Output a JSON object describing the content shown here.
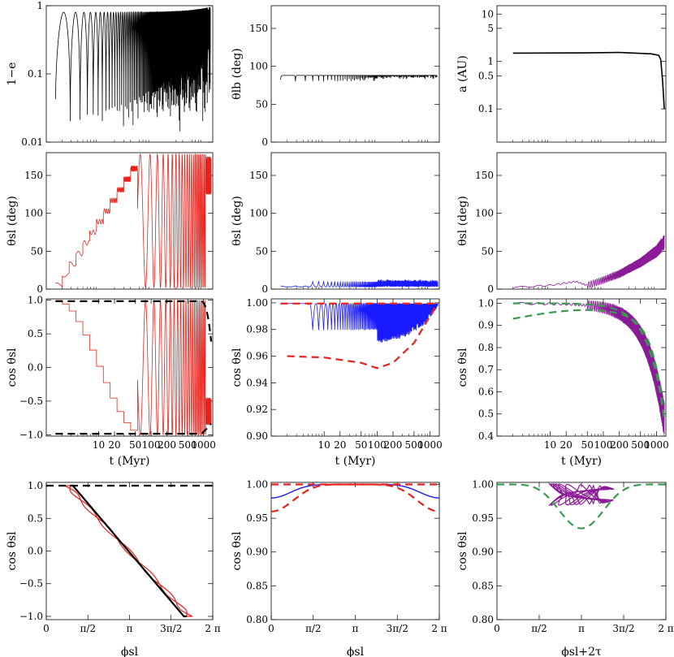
{
  "colors": {
    "black": "#000000",
    "red": "#e8221b",
    "blue": "#1a1aff",
    "purple": "#8b1a96",
    "green": "#3a9a4f"
  },
  "chart_data": [
    {
      "id": "p11",
      "type": "line",
      "ylabel": "1−e",
      "xscale": "log",
      "yscale": "log",
      "xlim": [
        1,
        1500
      ],
      "ylim": [
        0.01,
        1
      ],
      "yticks": [
        {
          "v": 0.01,
          "label": "0.01"
        },
        {
          "v": 0.1,
          "label": "0.1"
        },
        {
          "v": 1,
          "label": "1"
        }
      ],
      "series": [
        {
          "color": "black",
          "desc": "eccentricity oscillations",
          "envelope_min": 0.013,
          "envelope_max": 0.95
        }
      ]
    },
    {
      "id": "p12",
      "type": "line",
      "ylabel": "θlb (deg)",
      "xscale": "log",
      "xlim": [
        1,
        1500
      ],
      "ylim": [
        0,
        180
      ],
      "yticks": [
        {
          "v": 0,
          "label": "0"
        },
        {
          "v": 50,
          "label": "50"
        },
        {
          "v": 100,
          "label": "100"
        },
        {
          "v": 150,
          "label": "150"
        }
      ],
      "series": [
        {
          "color": "black",
          "approx_value": 88,
          "dips_to": 80
        }
      ]
    },
    {
      "id": "p13",
      "type": "line",
      "ylabel": "a (AU)",
      "xscale": "log",
      "yscale": "log",
      "xlim": [
        1,
        1500
      ],
      "ylim": [
        0.02,
        15
      ],
      "yticks": [
        {
          "v": 0.1,
          "label": "0.1"
        },
        {
          "v": 0.5,
          "label": "0.5"
        },
        {
          "v": 1,
          "label": "1"
        },
        {
          "v": 5,
          "label": "5"
        },
        {
          "v": 10,
          "label": "10"
        }
      ],
      "series": [
        {
          "color": "black",
          "x": [
            2,
            50,
            200,
            800,
            1100,
            1200,
            1300,
            1400
          ],
          "y": [
            1.5,
            1.52,
            1.55,
            1.45,
            1.35,
            1.1,
            0.4,
            0.1
          ]
        }
      ]
    },
    {
      "id": "p21",
      "type": "line",
      "ylabel": "θsl (deg)",
      "xscale": "log",
      "xlim": [
        1,
        1500
      ],
      "ylim": [
        0,
        180
      ],
      "yticks": [
        {
          "v": 0,
          "label": "0"
        },
        {
          "v": 50,
          "label": "50"
        },
        {
          "v": 100,
          "label": "100"
        },
        {
          "v": 150,
          "label": "150"
        }
      ],
      "series": [
        {
          "color": "red",
          "desc": "stepped rise then full flips 0-180"
        }
      ]
    },
    {
      "id": "p22",
      "type": "line",
      "ylabel": "θsl (deg)",
      "xscale": "log",
      "xlim": [
        1,
        1500
      ],
      "ylim": [
        0,
        180
      ],
      "yticks": [
        {
          "v": 0,
          "label": "0"
        },
        {
          "v": 50,
          "label": "50"
        },
        {
          "v": 100,
          "label": "100"
        },
        {
          "v": 150,
          "label": "150"
        }
      ],
      "series": [
        {
          "color": "blue",
          "approx_range": [
            0,
            15
          ]
        }
      ]
    },
    {
      "id": "p23",
      "type": "line",
      "ylabel": "θsl (deg)",
      "xscale": "log",
      "xlim": [
        1,
        1500
      ],
      "ylim": [
        0,
        180
      ],
      "yticks": [
        {
          "v": 0,
          "label": "0"
        },
        {
          "v": 50,
          "label": "50"
        },
        {
          "v": 100,
          "label": "100"
        },
        {
          "v": 150,
          "label": "150"
        }
      ],
      "series": [
        {
          "color": "purple",
          "x": [
            2,
            10,
            30,
            50,
            100,
            200,
            500,
            1000,
            1400
          ],
          "y": [
            2,
            5,
            10,
            5,
            12,
            20,
            35,
            50,
            62
          ]
        }
      ]
    },
    {
      "id": "p31",
      "type": "line",
      "ylabel": "cos θsl",
      "xlabel": "t (Myr)",
      "xscale": "log",
      "xlim": [
        1,
        1500
      ],
      "ylim": [
        -1.02,
        1.02
      ],
      "xticks": [
        {
          "v": 10,
          "label": "10"
        },
        {
          "v": 20,
          "label": "20"
        },
        {
          "v": 50,
          "label": "50"
        },
        {
          "v": 100,
          "label": "100"
        },
        {
          "v": 200,
          "label": "200"
        },
        {
          "v": 500,
          "label": "500"
        },
        {
          "v": 1000,
          "label": "1000"
        }
      ],
      "yticks": [
        {
          "v": -1,
          "label": "−1.0"
        },
        {
          "v": -0.5,
          "label": "−0.5"
        },
        {
          "v": 0,
          "label": "0.0"
        },
        {
          "v": 0.5,
          "label": "0.5"
        },
        {
          "v": 1,
          "label": "1.0"
        }
      ],
      "series": [
        {
          "color": "red"
        },
        {
          "color": "black",
          "style": "dashed"
        }
      ]
    },
    {
      "id": "p32",
      "type": "line",
      "ylabel": "cos θsl",
      "xlabel": "t (Myr)",
      "xscale": "log",
      "xlim": [
        1,
        1500
      ],
      "ylim": [
        0.9,
        1.003
      ],
      "xticks": [
        {
          "v": 10,
          "label": "10"
        },
        {
          "v": 20,
          "label": "20"
        },
        {
          "v": 50,
          "label": "50"
        },
        {
          "v": 100,
          "label": "100"
        },
        {
          "v": 200,
          "label": "200"
        },
        {
          "v": 500,
          "label": "500"
        },
        {
          "v": 1000,
          "label": "1000"
        }
      ],
      "yticks": [
        {
          "v": 0.9,
          "label": "0.90"
        },
        {
          "v": 0.92,
          "label": "0.92"
        },
        {
          "v": 0.94,
          "label": "0.94"
        },
        {
          "v": 0.96,
          "label": "0.96"
        },
        {
          "v": 0.98,
          "label": "0.98"
        },
        {
          "v": 1,
          "label": "1.00"
        }
      ],
      "series": [
        {
          "color": "blue"
        },
        {
          "color": "red",
          "style": "dashed",
          "x": [
            2,
            10,
            50,
            100,
            200,
            500,
            1000,
            1400
          ],
          "y": [
            0.96,
            0.959,
            0.955,
            0.951,
            0.955,
            0.97,
            0.99,
            1.0
          ]
        }
      ]
    },
    {
      "id": "p33",
      "type": "line",
      "ylabel": "cos θsl",
      "xlabel": "t (Myr)",
      "xscale": "log",
      "xlim": [
        1,
        1500
      ],
      "ylim": [
        0.4,
        1.02
      ],
      "xticks": [
        {
          "v": 10,
          "label": "10"
        },
        {
          "v": 20,
          "label": "20"
        },
        {
          "v": 50,
          "label": "50"
        },
        {
          "v": 100,
          "label": "100"
        },
        {
          "v": 200,
          "label": "200"
        },
        {
          "v": 500,
          "label": "500"
        },
        {
          "v": 1000,
          "label": "1000"
        }
      ],
      "yticks": [
        {
          "v": 0.4,
          "label": "0.4"
        },
        {
          "v": 0.5,
          "label": "0.5"
        },
        {
          "v": 0.6,
          "label": "0.6"
        },
        {
          "v": 0.7,
          "label": "0.7"
        },
        {
          "v": 0.8,
          "label": "0.8"
        },
        {
          "v": 0.9,
          "label": "0.9"
        },
        {
          "v": 1,
          "label": "1.0"
        }
      ],
      "series": [
        {
          "color": "purple"
        },
        {
          "color": "green",
          "style": "dashed"
        }
      ]
    },
    {
      "id": "p41",
      "type": "line",
      "ylabel": "cos θsl",
      "xlabel": "ϕsl",
      "xlim": [
        0,
        6.2832
      ],
      "ylim": [
        -1.05,
        1.05
      ],
      "xticks": [
        {
          "v": 0,
          "label": "0"
        },
        {
          "v": 1.5708,
          "label": "π/2"
        },
        {
          "v": 3.1416,
          "label": "π"
        },
        {
          "v": 4.7124,
          "label": "3π/2"
        },
        {
          "v": 6.2832,
          "label": "2 π"
        }
      ],
      "yticks": [
        {
          "v": -1,
          "label": "−1.0"
        },
        {
          "v": -0.5,
          "label": "−0.5"
        },
        {
          "v": 0,
          "label": "0.0"
        },
        {
          "v": 0.5,
          "label": "0.5"
        },
        {
          "v": 1,
          "label": "1.0"
        }
      ],
      "series": [
        {
          "color": "red"
        },
        {
          "color": "black",
          "style": "dashed"
        }
      ]
    },
    {
      "id": "p42",
      "type": "line",
      "ylabel": "cos θsl",
      "xlabel": "ϕsl",
      "xlim": [
        0,
        6.2832
      ],
      "ylim": [
        0.8,
        1.003
      ],
      "xticks": [
        {
          "v": 0,
          "label": "0"
        },
        {
          "v": 1.5708,
          "label": "π/2"
        },
        {
          "v": 3.1416,
          "label": "π"
        },
        {
          "v": 4.7124,
          "label": "3π/2"
        },
        {
          "v": 6.2832,
          "label": "2 π"
        }
      ],
      "yticks": [
        {
          "v": 0.8,
          "label": "0.80"
        },
        {
          "v": 0.85,
          "label": "0.85"
        },
        {
          "v": 0.9,
          "label": "0.90"
        },
        {
          "v": 0.95,
          "label": "0.95"
        },
        {
          "v": 1,
          "label": "1.00"
        }
      ],
      "series": [
        {
          "color": "blue"
        },
        {
          "color": "red",
          "style": "dashed"
        }
      ]
    },
    {
      "id": "p43",
      "type": "line",
      "ylabel": "cos θsl",
      "xlabel": "ϕsl+2τ",
      "xlim": [
        0,
        6.2832
      ],
      "ylim": [
        0.8,
        1.003
      ],
      "xticks": [
        {
          "v": 0,
          "label": "0"
        },
        {
          "v": 1.5708,
          "label": "π/2"
        },
        {
          "v": 3.1416,
          "label": "π"
        },
        {
          "v": 4.7124,
          "label": "3π/2"
        },
        {
          "v": 6.2832,
          "label": "2 π"
        }
      ],
      "yticks": [
        {
          "v": 0.8,
          "label": "0.80"
        },
        {
          "v": 0.85,
          "label": "0.85"
        },
        {
          "v": 0.9,
          "label": "0.90"
        },
        {
          "v": 0.95,
          "label": "0.95"
        },
        {
          "v": 1,
          "label": "1.00"
        }
      ],
      "series": [
        {
          "color": "purple"
        },
        {
          "color": "green",
          "style": "dashed"
        }
      ]
    }
  ]
}
